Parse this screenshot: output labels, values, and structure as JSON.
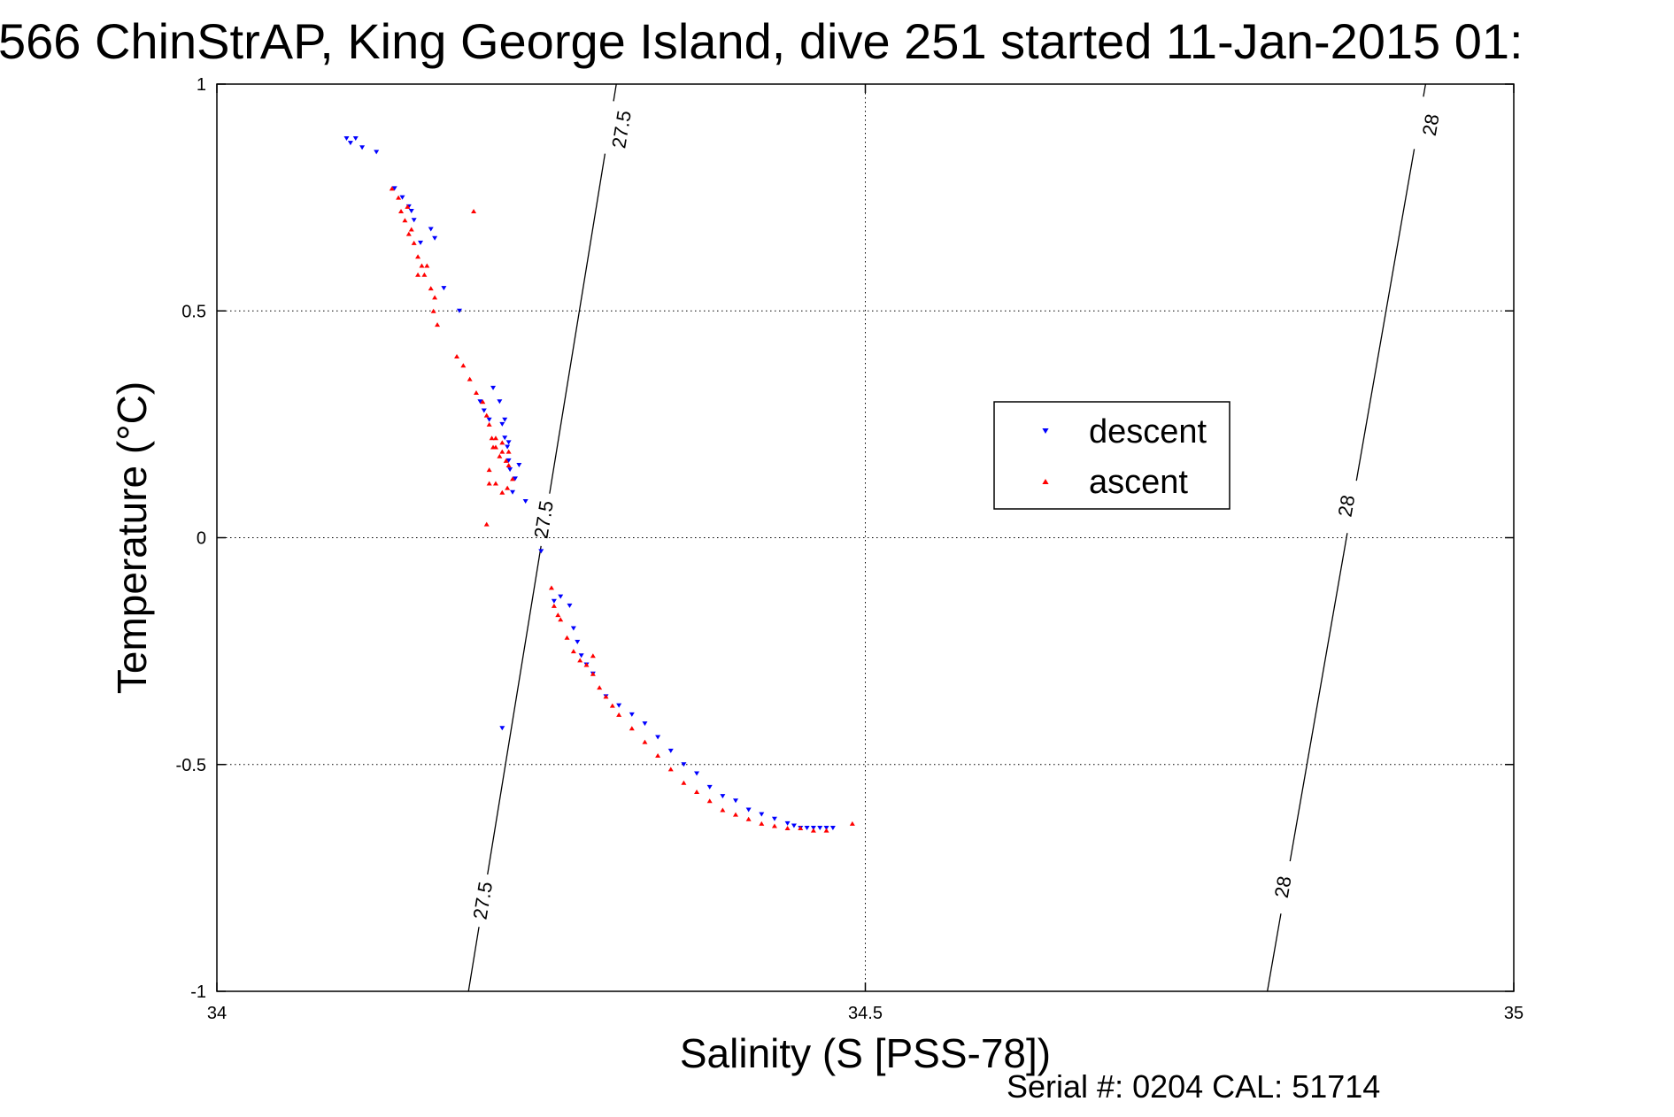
{
  "chart_data": {
    "type": "scatter",
    "title": "566 ChinStrAP, King George Island, dive 251 started 11-Jan-2015 01:",
    "xlabel": "Salinity (S [PSS-78])",
    "ylabel": "Temperature (°C)",
    "xlim": [
      34,
      35
    ],
    "ylim": [
      -1,
      1
    ],
    "xticks": [
      34,
      34.5,
      35
    ],
    "xtick_labels": [
      "34",
      "34.5",
      "35"
    ],
    "yticks": [
      -1,
      -0.5,
      0,
      0.5,
      1
    ],
    "ytick_labels": [
      "-1",
      "-0.5",
      "0",
      "0.5",
      "1"
    ],
    "grid": true,
    "legend": "center-right",
    "footer": "Serial #: 0204  CAL: 51714",
    "isopycnals": [
      {
        "label": "27.5",
        "line": [
          [
            34.194,
            -1
          ],
          [
            34.308,
            1
          ]
        ],
        "labels_at": [
          [
            34.205,
            -0.8
          ],
          [
            34.252,
            0.04
          ],
          [
            34.312,
            0.9
          ]
        ]
      },
      {
        "label": "28",
        "line": [
          [
            34.81,
            -1
          ],
          [
            34.932,
            1
          ]
        ],
        "labels_at": [
          [
            34.822,
            -0.77
          ],
          [
            34.871,
            0.07
          ],
          [
            34.936,
            0.91
          ]
        ]
      }
    ],
    "series": [
      {
        "name": "descent",
        "color": "#0000ff",
        "marker": "triangle-down",
        "x": [
          34.1,
          34.103,
          34.107,
          34.112,
          34.123,
          34.137,
          34.143,
          34.148,
          34.15,
          34.152,
          34.157,
          34.165,
          34.168,
          34.175,
          34.187,
          34.203,
          34.206,
          34.21,
          34.213,
          34.218,
          34.222,
          34.224,
          34.226,
          34.23,
          34.228,
          34.225,
          34.222,
          34.22,
          34.225,
          34.233,
          34.238,
          34.25,
          34.26,
          34.265,
          34.272,
          34.275,
          34.278,
          34.281,
          34.285,
          34.29,
          34.3,
          34.31,
          34.32,
          34.33,
          34.34,
          34.35,
          34.36,
          34.37,
          34.38,
          34.39,
          34.4,
          34.41,
          34.42,
          34.43,
          34.44,
          34.445,
          34.45,
          34.455,
          34.46,
          34.465,
          34.47,
          34.475,
          34.22
        ],
        "y": [
          0.88,
          0.87,
          0.88,
          0.86,
          0.85,
          0.77,
          0.75,
          0.73,
          0.72,
          0.7,
          0.65,
          0.68,
          0.66,
          0.55,
          0.5,
          0.3,
          0.28,
          0.26,
          0.33,
          0.3,
          0.26,
          0.2,
          0.15,
          0.13,
          0.1,
          0.17,
          0.22,
          0.25,
          0.21,
          0.16,
          0.08,
          -0.03,
          -0.14,
          -0.13,
          -0.15,
          -0.2,
          -0.23,
          -0.26,
          -0.28,
          -0.3,
          -0.35,
          -0.37,
          -0.39,
          -0.41,
          -0.44,
          -0.47,
          -0.5,
          -0.52,
          -0.55,
          -0.57,
          -0.58,
          -0.6,
          -0.61,
          -0.62,
          -0.63,
          -0.635,
          -0.64,
          -0.64,
          -0.64,
          -0.64,
          -0.64,
          -0.64,
          -0.42
        ]
      },
      {
        "name": "ascent",
        "color": "#ff0000",
        "marker": "triangle-up",
        "x": [
          34.135,
          34.14,
          34.142,
          34.145,
          34.147,
          34.15,
          34.148,
          34.152,
          34.155,
          34.158,
          34.16,
          34.162,
          34.165,
          34.167,
          34.17,
          34.168,
          34.155,
          34.185,
          34.19,
          34.195,
          34.2,
          34.205,
          34.208,
          34.21,
          34.212,
          34.215,
          34.22,
          34.225,
          34.223,
          34.218,
          34.213,
          34.21,
          34.215,
          34.22,
          34.224,
          34.228,
          34.225,
          34.22,
          34.215,
          34.21,
          34.208,
          34.258,
          34.26,
          34.263,
          34.265,
          34.27,
          34.275,
          34.28,
          34.285,
          34.29,
          34.29,
          34.295,
          34.3,
          34.305,
          34.31,
          34.32,
          34.33,
          34.34,
          34.35,
          34.36,
          34.37,
          34.38,
          34.39,
          34.4,
          34.41,
          34.42,
          34.43,
          34.44,
          34.45,
          34.46,
          34.47,
          34.49,
          34.198
        ],
        "y": [
          0.77,
          0.75,
          0.72,
          0.7,
          0.73,
          0.68,
          0.67,
          0.65,
          0.62,
          0.6,
          0.58,
          0.6,
          0.55,
          0.5,
          0.47,
          0.53,
          0.58,
          0.4,
          0.38,
          0.35,
          0.32,
          0.3,
          0.27,
          0.25,
          0.22,
          0.2,
          0.21,
          0.19,
          0.17,
          0.18,
          0.2,
          0.15,
          0.12,
          0.1,
          0.11,
          0.13,
          0.16,
          0.19,
          0.22,
          0.12,
          0.03,
          -0.11,
          -0.15,
          -0.17,
          -0.18,
          -0.22,
          -0.25,
          -0.27,
          -0.28,
          -0.3,
          -0.26,
          -0.33,
          -0.35,
          -0.37,
          -0.39,
          -0.42,
          -0.45,
          -0.48,
          -0.51,
          -0.54,
          -0.56,
          -0.58,
          -0.6,
          -0.61,
          -0.62,
          -0.63,
          -0.635,
          -0.64,
          -0.64,
          -0.645,
          -0.645,
          -0.63,
          0.72
        ]
      }
    ]
  }
}
